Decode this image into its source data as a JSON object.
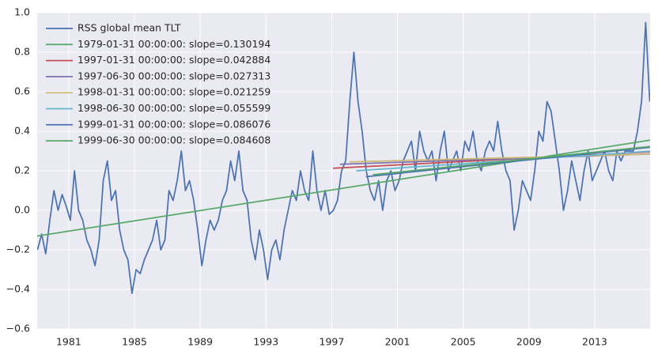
{
  "chart_data": {
    "type": "line",
    "legend": "upper left",
    "grid": true,
    "background": "#EAEAF2",
    "xlim": [
      1979.08,
      2016.37
    ],
    "xticks": [
      1981,
      1985,
      1989,
      1993,
      1997,
      2001,
      2005,
      2009,
      2013
    ],
    "ylim": [
      -0.6,
      1.0
    ],
    "yticks": [
      {
        "value": -0.6,
        "label": "−0.6"
      },
      {
        "value": -0.4,
        "label": "−0.4"
      },
      {
        "value": -0.2,
        "label": "−0.2"
      },
      {
        "value": 0,
        "label": "0.0"
      },
      0.2,
      0.4,
      0.6,
      0.8,
      {
        "value": 1.0,
        "label": "1.0"
      }
    ],
    "series": [
      {
        "name": "RSS global mean TLT",
        "color": "#4C72B0",
        "x": [
          1979.1,
          1979.35,
          1979.6,
          1979.85,
          1980.1,
          1980.35,
          1980.6,
          1980.85,
          1981.1,
          1981.35,
          1981.6,
          1981.85,
          1982.1,
          1982.35,
          1982.6,
          1982.85,
          1983.1,
          1983.35,
          1983.6,
          1983.85,
          1984.1,
          1984.35,
          1984.6,
          1984.85,
          1985.1,
          1985.35,
          1985.6,
          1985.85,
          1986.1,
          1986.35,
          1986.6,
          1986.85,
          1987.1,
          1987.35,
          1987.6,
          1987.85,
          1988.1,
          1988.35,
          1988.6,
          1988.85,
          1989.1,
          1989.35,
          1989.6,
          1989.85,
          1990.1,
          1990.35,
          1990.6,
          1990.85,
          1991.1,
          1991.35,
          1991.6,
          1991.85,
          1992.1,
          1992.35,
          1992.6,
          1992.85,
          1993.1,
          1993.35,
          1993.6,
          1993.85,
          1994.1,
          1994.35,
          1994.6,
          1994.85,
          1995.1,
          1995.35,
          1995.6,
          1995.85,
          1996.1,
          1996.35,
          1996.6,
          1996.85,
          1997.1,
          1997.35,
          1997.6,
          1997.85,
          1998.1,
          1998.35,
          1998.6,
          1998.85,
          1999.1,
          1999.35,
          1999.6,
          1999.85,
          2000.1,
          2000.35,
          2000.6,
          2000.85,
          2001.1,
          2001.35,
          2001.6,
          2001.85,
          2002.1,
          2002.35,
          2002.6,
          2002.85,
          2003.1,
          2003.35,
          2003.6,
          2003.85,
          2004.1,
          2004.35,
          2004.6,
          2004.85,
          2005.1,
          2005.35,
          2005.6,
          2005.85,
          2006.1,
          2006.35,
          2006.6,
          2006.85,
          2007.1,
          2007.35,
          2007.6,
          2007.85,
          2008.1,
          2008.35,
          2008.6,
          2008.85,
          2009.1,
          2009.35,
          2009.6,
          2009.85,
          2010.1,
          2010.35,
          2010.6,
          2010.85,
          2011.1,
          2011.35,
          2011.6,
          2011.85,
          2012.1,
          2012.35,
          2012.6,
          2012.85,
          2013.1,
          2013.35,
          2013.6,
          2013.85,
          2014.1,
          2014.35,
          2014.6,
          2014.85,
          2015.1,
          2015.35,
          2015.6,
          2015.85,
          2016.1,
          2016.35
        ],
        "values": [
          -0.2,
          -0.12,
          -0.22,
          -0.05,
          0.1,
          0.0,
          0.08,
          0.02,
          -0.05,
          0.2,
          0.0,
          -0.05,
          -0.15,
          -0.2,
          -0.28,
          -0.15,
          0.15,
          0.25,
          0.05,
          0.1,
          -0.1,
          -0.2,
          -0.25,
          -0.42,
          -0.3,
          -0.32,
          -0.25,
          -0.2,
          -0.15,
          -0.05,
          -0.2,
          -0.15,
          0.1,
          0.05,
          0.15,
          0.3,
          0.1,
          0.15,
          0.05,
          -0.1,
          -0.28,
          -0.15,
          -0.05,
          -0.1,
          -0.05,
          0.05,
          0.1,
          0.25,
          0.15,
          0.3,
          0.1,
          0.05,
          -0.15,
          -0.25,
          -0.1,
          -0.2,
          -0.35,
          -0.2,
          -0.15,
          -0.25,
          -0.1,
          0.0,
          0.1,
          0.05,
          0.2,
          0.1,
          0.05,
          0.3,
          0.1,
          0.0,
          0.1,
          -0.02,
          0.0,
          0.05,
          0.2,
          0.25,
          0.55,
          0.8,
          0.55,
          0.4,
          0.2,
          0.1,
          0.05,
          0.15,
          0.0,
          0.15,
          0.2,
          0.1,
          0.15,
          0.25,
          0.3,
          0.35,
          0.2,
          0.4,
          0.3,
          0.25,
          0.3,
          0.15,
          0.3,
          0.4,
          0.2,
          0.25,
          0.3,
          0.2,
          0.35,
          0.3,
          0.4,
          0.25,
          0.2,
          0.3,
          0.35,
          0.3,
          0.45,
          0.3,
          0.2,
          0.15,
          -0.1,
          0.0,
          0.15,
          0.1,
          0.05,
          0.2,
          0.4,
          0.35,
          0.55,
          0.5,
          0.35,
          0.2,
          0.0,
          0.1,
          0.25,
          0.15,
          0.05,
          0.2,
          0.3,
          0.15,
          0.2,
          0.25,
          0.3,
          0.2,
          0.15,
          0.3,
          0.25,
          0.3,
          0.3,
          0.3,
          0.4,
          0.55,
          0.95,
          0.55
        ]
      },
      {
        "name": "1979-01-31 00:00:00: slope=0.130194",
        "color": "#55A868",
        "x": [
          1979.08,
          2016.37
        ],
        "values": [
          -0.13,
          0.355
        ]
      },
      {
        "name": "1997-01-31 00:00:00: slope=0.042884",
        "color": "#C44E52",
        "x": [
          1997.08,
          2016.37
        ],
        "values": [
          0.213,
          0.296
        ]
      },
      {
        "name": "1997-06-30 00:00:00: slope=0.027313",
        "color": "#8172B2",
        "x": [
          1997.5,
          2016.37
        ],
        "values": [
          0.233,
          0.285
        ]
      },
      {
        "name": "1998-01-31 00:00:00: slope=0.021259",
        "color": "#CCB974",
        "x": [
          1998.08,
          2016.37
        ],
        "values": [
          0.245,
          0.284
        ]
      },
      {
        "name": "1998-06-30 00:00:00: slope=0.055599",
        "color": "#64B5CD",
        "x": [
          1998.5,
          2016.37
        ],
        "values": [
          0.2,
          0.299
        ]
      },
      {
        "name": "1999-01-31 00:00:00: slope=0.086076",
        "color": "#4C72B0",
        "x": [
          1999.08,
          2016.37
        ],
        "values": [
          0.17,
          0.319
        ]
      },
      {
        "name": "1999-06-30 00:00:00: slope=0.084608",
        "color": "#55A868",
        "x": [
          1999.5,
          2016.37
        ],
        "values": [
          0.18,
          0.323
        ]
      }
    ]
  }
}
